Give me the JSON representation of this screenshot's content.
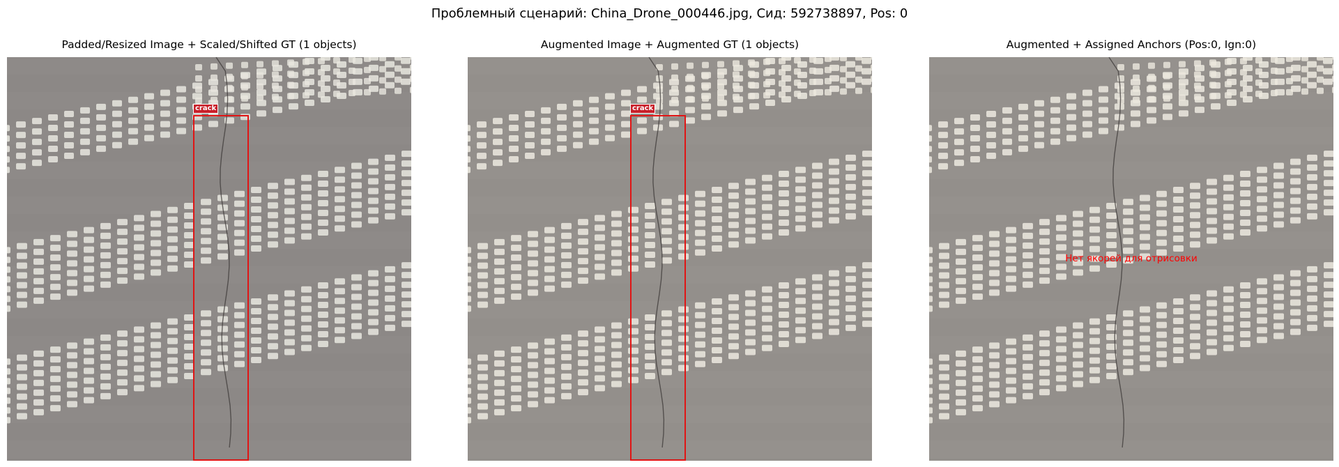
{
  "figure": {
    "suptitle": "Проблемный сценарий: China_Drone_000446.jpg, Сид: 592738897, Pos: 0"
  },
  "panels": [
    {
      "title": "Padded/Resized Image + Scaled/Shifted GT (1 objects)",
      "box_label": "crack",
      "box_color": "#e01515"
    },
    {
      "title": "Augmented Image + Augmented GT (1 objects)",
      "box_label": "crack",
      "box_color": "#e01515"
    },
    {
      "title": "Augmented + Assigned Anchors (Pos:0, Ign:0)",
      "message": "Нет якорей для отрисовки",
      "message_color": "#ff0000"
    }
  ],
  "colors": {
    "asphalt": "#8c8886",
    "marking": "#e8e6df"
  }
}
